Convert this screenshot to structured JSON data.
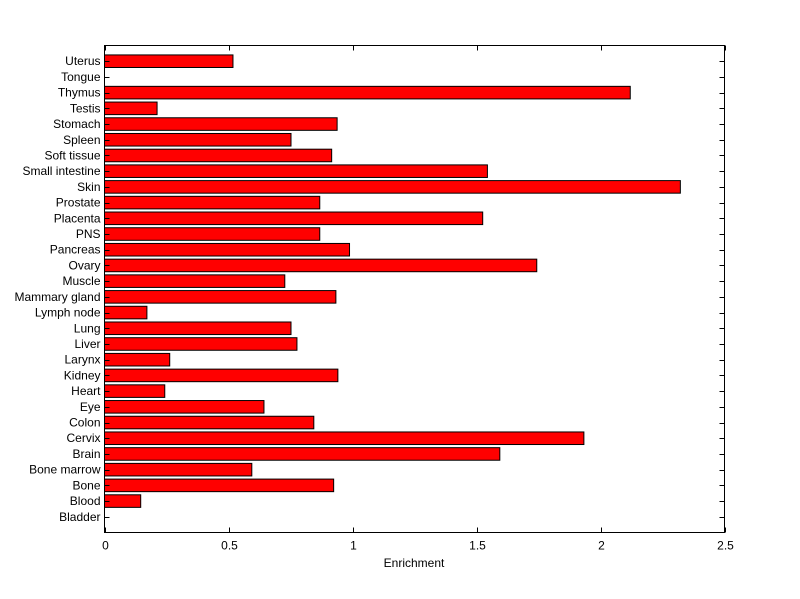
{
  "chart_data": {
    "type": "bar",
    "orientation": "horizontal",
    "title": "",
    "xlabel": "Enrichment",
    "ylabel": "",
    "xlim": [
      0,
      2.5
    ],
    "xticks": [
      0,
      0.5,
      1,
      1.5,
      2,
      2.5
    ],
    "xtick_labels": [
      "0",
      "0.5",
      "1",
      "1.5",
      "2",
      "2.5"
    ],
    "grid": false,
    "bar_color": "#ff0000",
    "categories": [
      "Bladder",
      "Blood",
      "Bone",
      "Bone marrow",
      "Brain",
      "Cervix",
      "Colon",
      "Eye",
      "Heart",
      "Kidney",
      "Larynx",
      "Liver",
      "Lung",
      "Lymph node",
      "Mammary gland",
      "Muscle",
      "Ovary",
      "Pancreas",
      "PNS",
      "Placenta",
      "Prostate",
      "Skin",
      "Small intestine",
      "Soft tissue",
      "Spleen",
      "Stomach",
      "Testis",
      "Thymus",
      "Tongue",
      "Uterus"
    ],
    "values": [
      0,
      0.146,
      0.924,
      0.594,
      1.594,
      1.933,
      0.844,
      0.643,
      0.243,
      0.941,
      0.263,
      0.776,
      0.752,
      0.171,
      0.933,
      0.727,
      1.743,
      0.988,
      0.868,
      1.525,
      0.868,
      2.322,
      1.544,
      0.916,
      0.752,
      0.938,
      0.212,
      2.12,
      0,
      0.518
    ]
  }
}
